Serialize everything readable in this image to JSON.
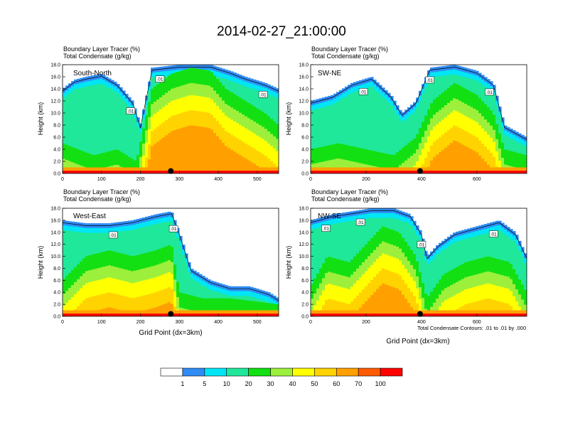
{
  "title": "2014-02-27_21:00:00",
  "panel_header_line1": "Boundary Layer Tracer    (%)",
  "panel_header_line2": "Total Condensate   (g/kg)",
  "ylabel": "Height (km)",
  "xlabel": "Grid Point (dx=3km)",
  "contour_note": "Total Condensate Contours: .01 to .01 by .000",
  "contour_label": ".01",
  "colorbar": {
    "colors": [
      "#ffffff",
      "#2f8cf5",
      "#00e5f5",
      "#20e89a",
      "#12e012",
      "#9cf03c",
      "#ffff00",
      "#ffd300",
      "#ffa000",
      "#ff5a00",
      "#ff0000"
    ],
    "labels": [
      "1",
      "5",
      "10",
      "20",
      "30",
      "40",
      "50",
      "60",
      "70",
      "100"
    ]
  },
  "colors": {
    "low_band": "#ff5a00",
    "ground_band": "#ff0000",
    "contour": "#000000",
    "marker": "#000000"
  },
  "chart_data": [
    {
      "type": "heatmap",
      "name": "South-North",
      "xlim": [
        0,
        555
      ],
      "ylim": [
        0,
        18
      ],
      "xticks": [
        0,
        100,
        200,
        300,
        400,
        500
      ],
      "yticks": [
        "0.0",
        "2.0",
        "4.0",
        "6.0",
        "8.0",
        "10.0",
        "12.0",
        "14.0",
        "16.0",
        "18.0"
      ],
      "marker_x": 278,
      "contour_labels_x": [
        175,
        250,
        515
      ],
      "top_profile": [
        [
          0,
          14
        ],
        [
          30,
          15.5
        ],
        [
          60,
          16
        ],
        [
          100,
          16.5
        ],
        [
          140,
          15
        ],
        [
          180,
          12
        ],
        [
          200,
          8
        ],
        [
          230,
          17.5
        ],
        [
          300,
          18
        ],
        [
          380,
          18
        ],
        [
          430,
          17
        ],
        [
          470,
          16
        ],
        [
          520,
          15
        ],
        [
          555,
          14
        ]
      ],
      "core_profile": [
        [
          0,
          5
        ],
        [
          40,
          4
        ],
        [
          80,
          3
        ],
        [
          140,
          4
        ],
        [
          190,
          2
        ],
        [
          230,
          14
        ],
        [
          280,
          16.5
        ],
        [
          330,
          17.5
        ],
        [
          380,
          17
        ],
        [
          420,
          14
        ],
        [
          470,
          12
        ],
        [
          520,
          10
        ],
        [
          555,
          8
        ]
      ]
    },
    {
      "type": "heatmap",
      "name": "SW-NE",
      "xlim": [
        0,
        780
      ],
      "ylim": [
        0,
        18
      ],
      "xticks": [
        0,
        200,
        400,
        600
      ],
      "yticks": [
        "0.0",
        "2.0",
        "4.0",
        "6.0",
        "8.0",
        "10.0",
        "12.0",
        "14.0",
        "16.0",
        "18.0"
      ],
      "marker_x": 395,
      "contour_labels_x": [
        190,
        430,
        645
      ],
      "top_profile": [
        [
          0,
          12
        ],
        [
          80,
          13
        ],
        [
          150,
          15
        ],
        [
          220,
          16
        ],
        [
          290,
          13
        ],
        [
          330,
          10
        ],
        [
          380,
          12
        ],
        [
          430,
          17.5
        ],
        [
          520,
          18
        ],
        [
          600,
          17
        ],
        [
          660,
          15
        ],
        [
          700,
          8
        ],
        [
          780,
          6
        ]
      ],
      "core_profile": [
        [
          0,
          4
        ],
        [
          100,
          5
        ],
        [
          200,
          4
        ],
        [
          300,
          3
        ],
        [
          380,
          6
        ],
        [
          440,
          12
        ],
        [
          520,
          15
        ],
        [
          600,
          13
        ],
        [
          660,
          10
        ],
        [
          700,
          4
        ],
        [
          780,
          3
        ]
      ]
    },
    {
      "type": "heatmap",
      "name": "West-East",
      "xlim": [
        0,
        555
      ],
      "ylim": [
        0,
        18
      ],
      "xticks": [
        0,
        100,
        200,
        300,
        400,
        500
      ],
      "yticks": [
        "0.0",
        "2.0",
        "4.0",
        "6.0",
        "8.0",
        "10.0",
        "12.0",
        "14.0",
        "16.0",
        "18.0"
      ],
      "marker_x": 278,
      "contour_labels_x": [
        130,
        285
      ],
      "top_profile": [
        [
          0,
          16
        ],
        [
          60,
          15.5
        ],
        [
          120,
          15.5
        ],
        [
          180,
          16
        ],
        [
          240,
          17
        ],
        [
          280,
          17.5
        ],
        [
          300,
          14
        ],
        [
          330,
          8
        ],
        [
          380,
          6
        ],
        [
          430,
          5
        ],
        [
          480,
          5
        ],
        [
          530,
          4
        ],
        [
          555,
          3
        ]
      ],
      "core_profile": [
        [
          0,
          6
        ],
        [
          60,
          10
        ],
        [
          120,
          11
        ],
        [
          180,
          10
        ],
        [
          240,
          11
        ],
        [
          280,
          12
        ],
        [
          300,
          4
        ],
        [
          360,
          3
        ],
        [
          430,
          3
        ],
        [
          555,
          2
        ]
      ]
    },
    {
      "type": "heatmap",
      "name": "NW-SE",
      "xlim": [
        0,
        780
      ],
      "ylim": [
        0,
        18
      ],
      "xticks": [
        0,
        200,
        400,
        600
      ],
      "yticks": [
        "0.0",
        "2.0",
        "4.0",
        "6.0",
        "8.0",
        "10.0",
        "12.0",
        "14.0",
        "16.0",
        "18.0"
      ],
      "marker_x": 395,
      "contour_labels_x": [
        55,
        180,
        400,
        660
      ],
      "top_profile": [
        [
          0,
          16
        ],
        [
          80,
          17
        ],
        [
          150,
          17.5
        ],
        [
          220,
          18
        ],
        [
          300,
          18
        ],
        [
          360,
          17
        ],
        [
          400,
          14
        ],
        [
          420,
          10
        ],
        [
          460,
          12
        ],
        [
          520,
          14
        ],
        [
          600,
          15
        ],
        [
          680,
          16
        ],
        [
          740,
          14
        ],
        [
          780,
          10
        ]
      ],
      "core_profile": [
        [
          0,
          5
        ],
        [
          60,
          10
        ],
        [
          140,
          9
        ],
        [
          200,
          12
        ],
        [
          260,
          15
        ],
        [
          320,
          14
        ],
        [
          380,
          10
        ],
        [
          420,
          3
        ],
        [
          480,
          7
        ],
        [
          560,
          9
        ],
        [
          640,
          10
        ],
        [
          720,
          9
        ],
        [
          780,
          4
        ]
      ]
    }
  ]
}
